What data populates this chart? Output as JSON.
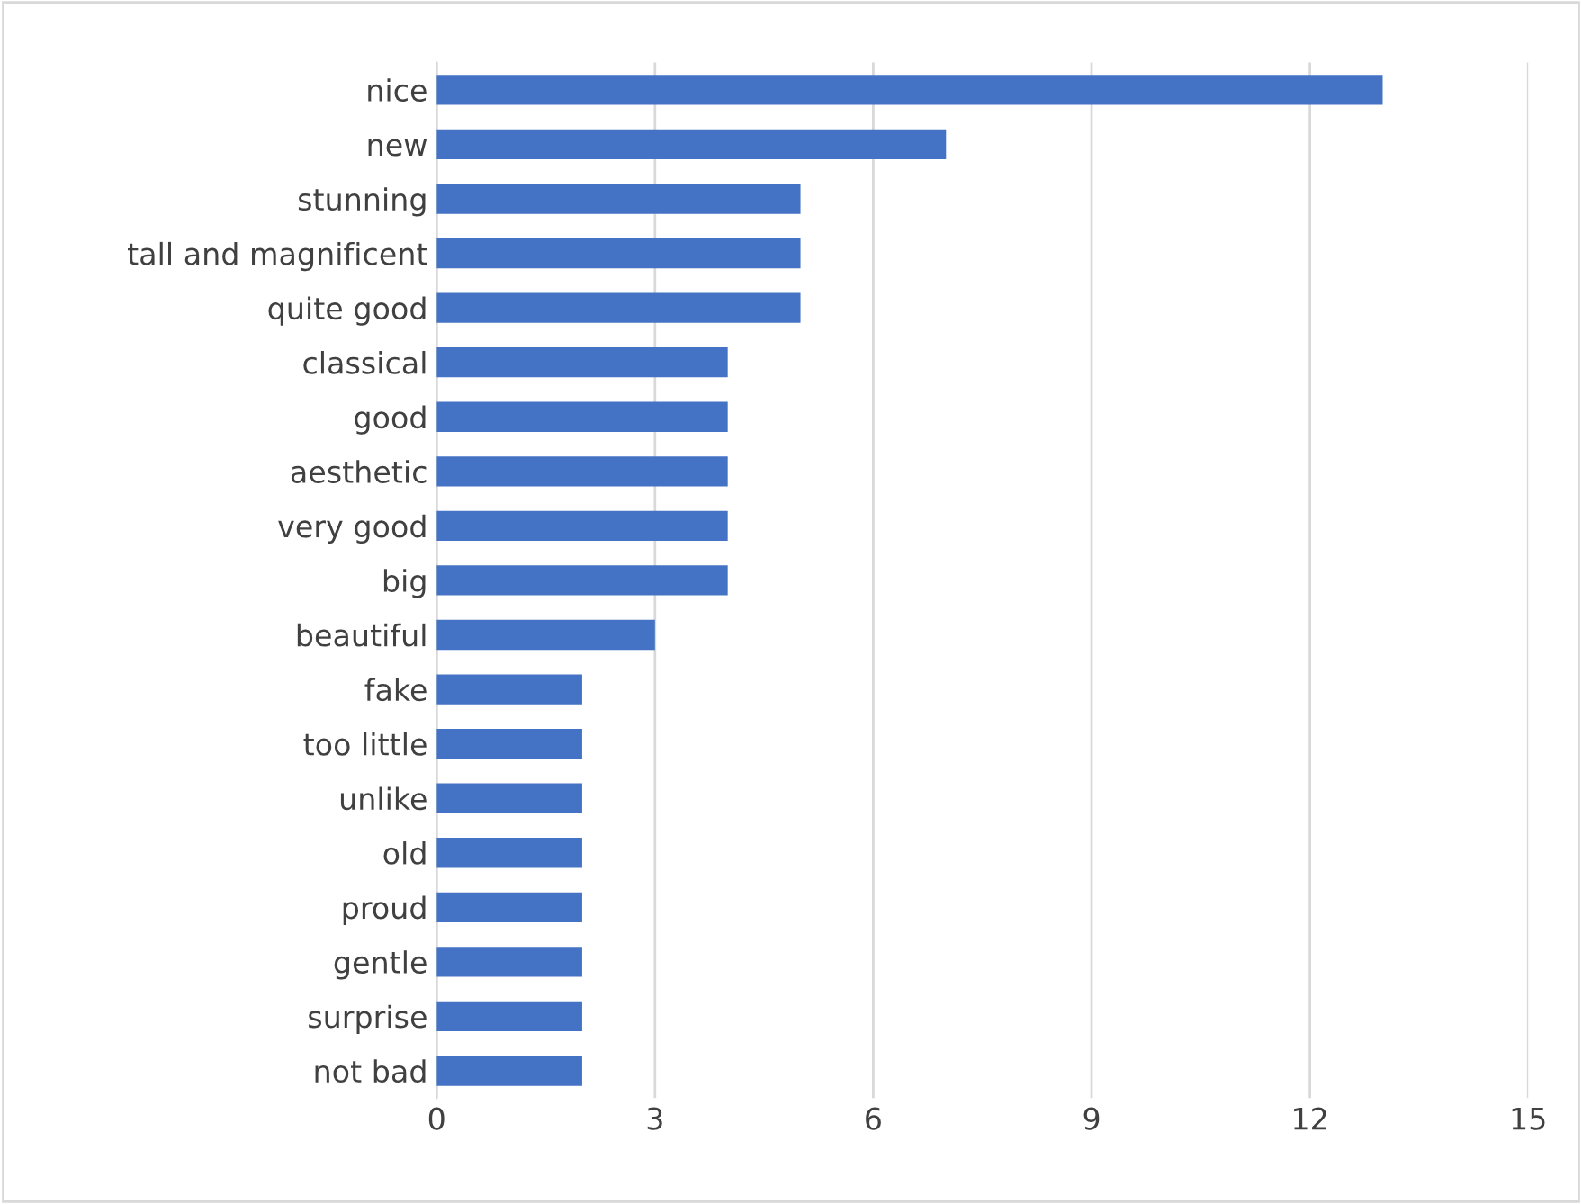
{
  "chart_data": {
    "type": "bar",
    "orientation": "horizontal",
    "categories": [
      "nice",
      "new",
      "stunning",
      "tall and magnificent",
      "quite good",
      "classical",
      "good",
      "aesthetic",
      "very good",
      "big",
      "beautiful",
      "fake",
      "too little",
      "unlike",
      "old",
      "proud",
      "gentle",
      "surprise",
      "not bad"
    ],
    "values": [
      13,
      7,
      5,
      5,
      5,
      4,
      4,
      4,
      4,
      4,
      3,
      2,
      2,
      2,
      2,
      2,
      2,
      2,
      2
    ],
    "color": "#4472c4",
    "xlim": [
      0,
      15
    ],
    "xticks": [
      0,
      3,
      6,
      9,
      12,
      15
    ],
    "grid": "x",
    "legend": false
  }
}
